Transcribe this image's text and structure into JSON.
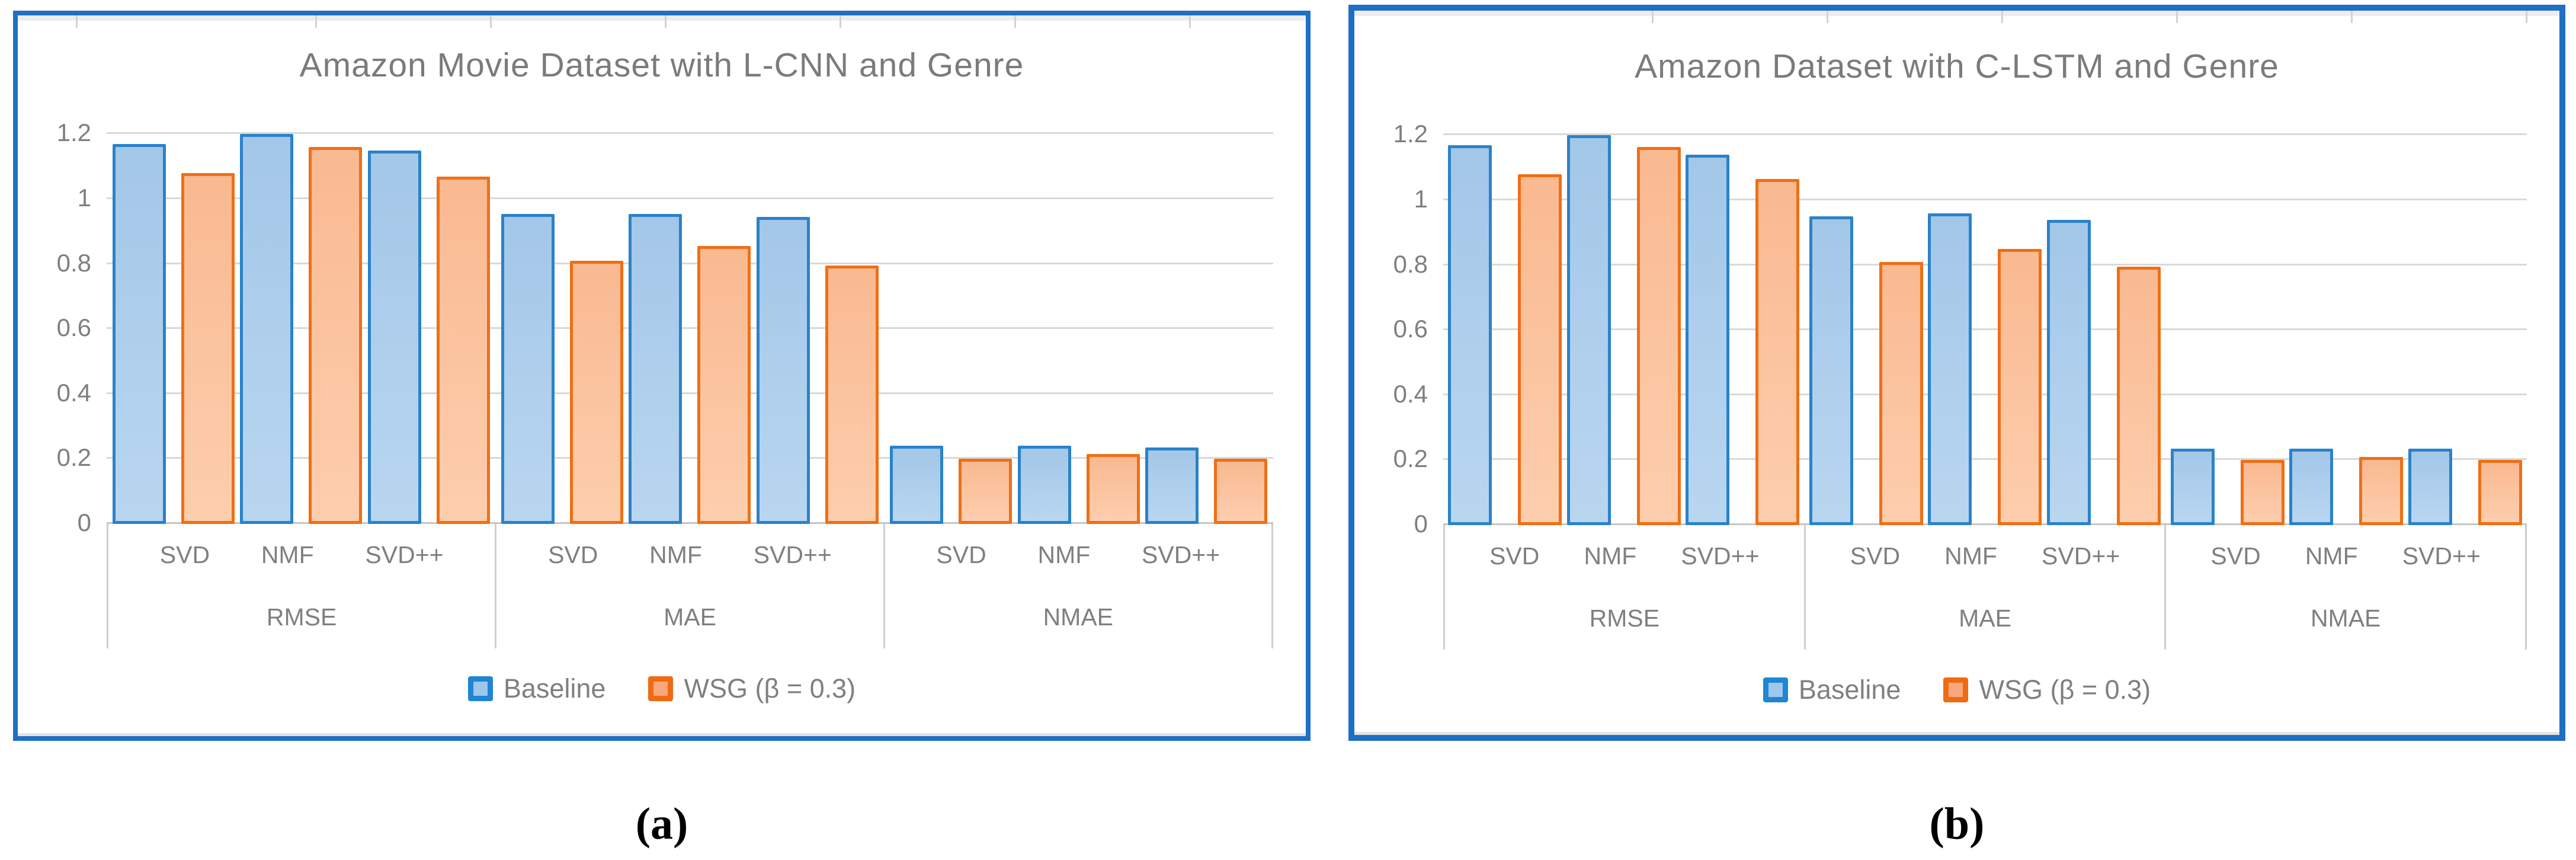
{
  "figure": {
    "captions": {
      "a": "(a)",
      "b": "(b)"
    }
  },
  "colors": {
    "panel_border": "#1f6fc5",
    "baseline_bar_border": "#2a82ca",
    "baseline_bar_fill": "#aecfee",
    "wsg_bar_border": "#ef6f15",
    "wsg_bar_fill": "#fbc4a0",
    "gridline": "#d9d9d9",
    "axis_text": "#7f7f7f",
    "title_text": "#7b7b7b"
  },
  "chart_data": [
    {
      "panel": "a",
      "type": "bar",
      "title": "Amazon Movie Dataset with L-CNN and Genre",
      "categories": [
        "RMSE",
        "MAE",
        "NMAE"
      ],
      "subcategories": [
        "SVD",
        "NMF",
        "SVD++"
      ],
      "y_ticks": [
        0,
        0.2,
        0.4,
        0.6,
        0.8,
        1,
        1.2
      ],
      "ylim": [
        0,
        1.3
      ],
      "grid": true,
      "legend_position": "bottom",
      "series": [
        {
          "name": "Baseline",
          "values": [
            [
              1.17,
              1.2,
              1.15
            ],
            [
              0.955,
              0.955,
              0.945
            ],
            [
              0.24,
              0.24,
              0.235
            ]
          ]
        },
        {
          "name": "WSG (β = 0.3)",
          "values": [
            [
              1.08,
              1.16,
              1.07
            ],
            [
              0.81,
              0.855,
              0.795
            ],
            [
              0.2,
              0.215,
              0.2
            ]
          ]
        }
      ]
    },
    {
      "panel": "b",
      "type": "bar",
      "title": "Amazon Dataset with C-LSTM and Genre",
      "categories": [
        "RMSE",
        "MAE",
        "NMAE"
      ],
      "subcategories": [
        "SVD",
        "NMF",
        "SVD++"
      ],
      "y_ticks": [
        0,
        0.2,
        0.4,
        0.6,
        0.8,
        1,
        1.2
      ],
      "ylim": [
        0,
        1.3
      ],
      "grid": true,
      "legend_position": "bottom",
      "series": [
        {
          "name": "Baseline",
          "values": [
            [
              1.17,
              1.2,
              1.14
            ],
            [
              0.95,
              0.96,
              0.94
            ],
            [
              0.235,
              0.235,
              0.235
            ]
          ]
        },
        {
          "name": "WSG (β = 0.3)",
          "values": [
            [
              1.08,
              1.165,
              1.065
            ],
            [
              0.81,
              0.85,
              0.795
            ],
            [
              0.2,
              0.21,
              0.2
            ]
          ]
        }
      ]
    }
  ]
}
